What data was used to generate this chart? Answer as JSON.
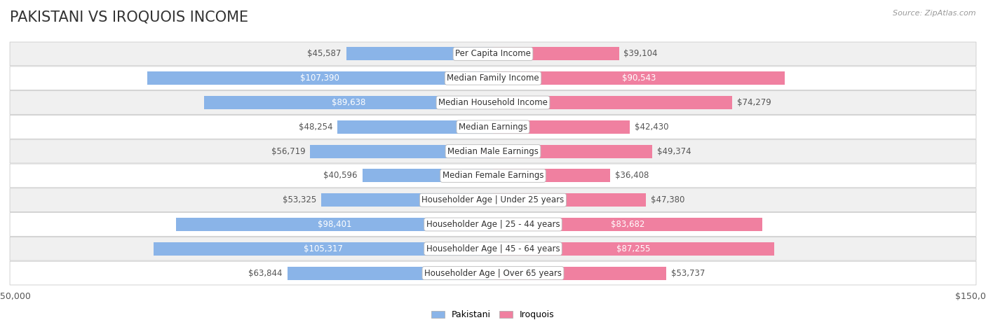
{
  "title": "PAKISTANI VS IROQUOIS INCOME",
  "source": "Source: ZipAtlas.com",
  "categories": [
    "Per Capita Income",
    "Median Family Income",
    "Median Household Income",
    "Median Earnings",
    "Median Male Earnings",
    "Median Female Earnings",
    "Householder Age | Under 25 years",
    "Householder Age | 25 - 44 years",
    "Householder Age | 45 - 64 years",
    "Householder Age | Over 65 years"
  ],
  "pakistani_values": [
    45587,
    107390,
    89638,
    48254,
    56719,
    40596,
    53325,
    98401,
    105317,
    63844
  ],
  "iroquois_values": [
    39104,
    90543,
    74279,
    42430,
    49374,
    36408,
    47380,
    83682,
    87255,
    53737
  ],
  "pakistani_labels": [
    "$45,587",
    "$107,390",
    "$89,638",
    "$48,254",
    "$56,719",
    "$40,596",
    "$53,325",
    "$98,401",
    "$105,317",
    "$63,844"
  ],
  "iroquois_labels": [
    "$39,104",
    "$90,543",
    "$74,279",
    "$42,430",
    "$49,374",
    "$36,408",
    "$47,380",
    "$83,682",
    "$87,255",
    "$53,737"
  ],
  "pakistani_color": "#8ab4e8",
  "iroquois_color": "#f080a0",
  "dark_gray_text": "#555555",
  "white_text": "#ffffff",
  "white_label_threshold_pak": 75000,
  "white_label_threshold_iro": 75000,
  "max_value": 150000,
  "bg_row_even": "#f0f0f0",
  "bg_row_odd": "#ffffff",
  "bar_height": 0.55,
  "title_fontsize": 15,
  "label_fontsize": 8.5,
  "category_fontsize": 8.5,
  "axis_label_fontsize": 9,
  "background_color": "#ffffff",
  "legend_label_pak": "Pakistani",
  "legend_label_iro": "Iroquois"
}
